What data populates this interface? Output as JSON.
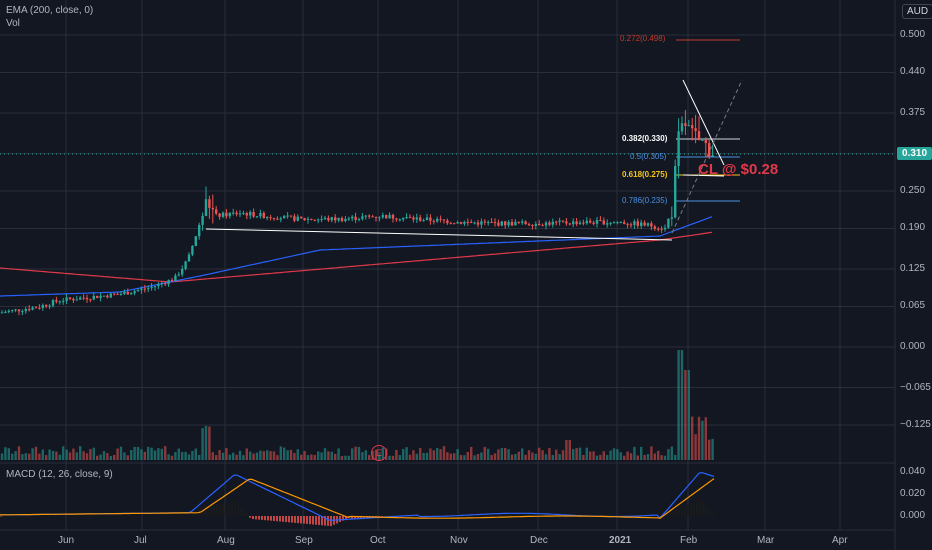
{
  "currency": "AUD",
  "indicators": {
    "ema_label": "EMA (200, close, 0)",
    "vol_label": "Vol",
    "macd_label": "MACD (12, 26, close, 9)"
  },
  "last_price": "0.310",
  "annotation": "CL @ $0.28",
  "earnings_badge": "E",
  "price_axis": [
    "0.500",
    "0.440",
    "0.375",
    "0.310",
    "0.250",
    "0.190",
    "0.125",
    "0.065",
    "0.000",
    "−0.065",
    "−0.125"
  ],
  "macd_axis": [
    "0.040",
    "0.020",
    "0.000"
  ],
  "time_axis": [
    "Jun",
    "Jul",
    "Aug",
    "Sep",
    "Oct",
    "Nov",
    "Dec",
    "2021",
    "Feb",
    "Mar",
    "Apr"
  ],
  "fib_levels": [
    {
      "label": "0.272(0.498)",
      "color": "#c0392b"
    },
    {
      "label": "0.382(0.330)",
      "color": "#ffffff"
    },
    {
      "label": "0.5(0.305)",
      "color": "#4a90e2"
    },
    {
      "label": "0.618(0.275)",
      "color": "#f5c518"
    },
    {
      "label": "0.786(0.235)",
      "color": "#4a90e2"
    }
  ],
  "colors": {
    "up": "#26a69a",
    "down": "#ef5350",
    "ema200": "#e0394a",
    "ma_blue": "#2962ff",
    "macd_line": "#2962ff",
    "signal_line": "#ff9800"
  },
  "chart_data": {
    "type": "candlestick",
    "ylim": [
      -0.16,
      0.52
    ],
    "x_range": [
      "2020-05",
      "2021-04"
    ],
    "price_path": [
      [
        "2020-05-20",
        0.055
      ],
      [
        "2020-06-01",
        0.06
      ],
      [
        "2020-06-10",
        0.065
      ],
      [
        "2020-06-20",
        0.075
      ],
      [
        "2020-07-01",
        0.08
      ],
      [
        "2020-07-10",
        0.09
      ],
      [
        "2020-07-20",
        0.11
      ],
      [
        "2020-07-25",
        0.14
      ],
      [
        "2020-07-28",
        0.2
      ],
      [
        "2020-07-31",
        0.23
      ],
      [
        "2020-08-05",
        0.21
      ],
      [
        "2020-08-15",
        0.215
      ],
      [
        "2020-08-25",
        0.21
      ],
      [
        "2020-09-10",
        0.205
      ],
      [
        "2020-09-25",
        0.205
      ],
      [
        "2020-10-05",
        0.21
      ],
      [
        "2020-10-20",
        0.205
      ],
      [
        "2020-11-01",
        0.2
      ],
      [
        "2020-11-15",
        0.195
      ],
      [
        "2020-12-01",
        0.195
      ],
      [
        "2020-12-15",
        0.2
      ],
      [
        "2021-01-01",
        0.2
      ],
      [
        "2021-01-15",
        0.195
      ],
      [
        "2021-01-22",
        0.19
      ],
      [
        "2021-01-27",
        0.22
      ],
      [
        "2021-01-29",
        0.35
      ],
      [
        "2021-02-01",
        0.38
      ],
      [
        "2021-02-03",
        0.36
      ],
      [
        "2021-02-06",
        0.33
      ],
      [
        "2021-02-10",
        0.32
      ],
      [
        "2021-02-13",
        0.31
      ]
    ],
    "fibonacci": [
      {
        "ratio": 0.272,
        "price": 0.498
      },
      {
        "ratio": 0.382,
        "price": 0.33
      },
      {
        "ratio": 0.5,
        "price": 0.305
      },
      {
        "ratio": 0.618,
        "price": 0.275
      },
      {
        "ratio": 0.786,
        "price": 0.235
      }
    ]
  }
}
